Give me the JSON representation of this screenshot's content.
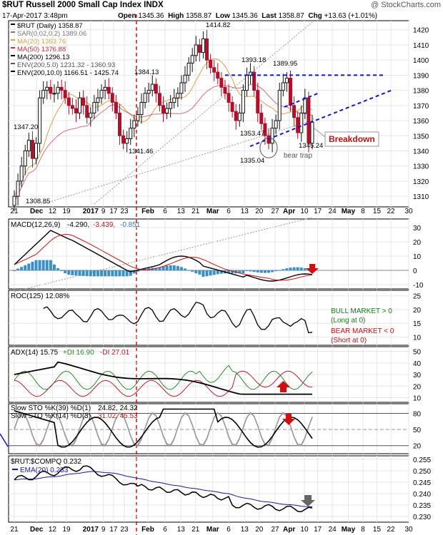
{
  "header": {
    "symbol_line": "$RUT Russell 2000 Small Cap Index INDX",
    "brand": "@ StockCharts.com",
    "date": "17-Apr-2017 3:48pm",
    "open_label": "Open",
    "open": "1345.36",
    "high_label": "High",
    "high": "1358.87",
    "low_label": "Low",
    "low": "1345.36",
    "last_label": "Last",
    "last": "1358.87",
    "chg_label": "Chg",
    "chg": "+13.63 (+1.01%)"
  },
  "colors": {
    "up": "#111111",
    "down": "#b0102a",
    "ma20": "#d4a24a",
    "ma50": "#c03040",
    "ma200": "#000000",
    "env": "#888888",
    "trend": "#1515c8",
    "macd_hist": "#3a8fc4",
    "signal_red": "#d01010",
    "bull": "#1a7a1a",
    "bear": "#c01010"
  },
  "price_panel": {
    "legend": [
      {
        "text": "$RUT (Daily) 1358.87",
        "color": "#000000"
      },
      {
        "text": "SAR(0.02,0.2) 1389.06",
        "color": "#777777"
      },
      {
        "text": "MA(20) 1363.76",
        "color": "#d4a24a"
      },
      {
        "text": "MA(50) 1376.88",
        "color": "#c03040"
      },
      {
        "text": "MA(200) 1296.13",
        "color": "#000000"
      },
      {
        "text": "ENV(200,5.0) 1231.32 - 1360.93",
        "color": "#555555"
      },
      {
        "text": "ENV(200,10.0) 1166.51 - 1425.74",
        "color": "#000000"
      }
    ],
    "annotations": [
      {
        "text": "1414.82"
      },
      {
        "text": "1393.18"
      },
      {
        "text": "1389.95"
      },
      {
        "text": "1384.13"
      },
      {
        "text": "1347.20"
      },
      {
        "text": "1341.46"
      },
      {
        "text": "1353.47"
      },
      {
        "text": "1345.24"
      },
      {
        "text": "1335.04"
      },
      {
        "text": "1308.85"
      },
      {
        "text": "bear trap"
      },
      {
        "text": "Breakdown"
      }
    ]
  },
  "x_axis": {
    "labels": [
      "21",
      "Dec",
      "12",
      "19",
      "2017",
      "9",
      "17",
      "23",
      "Feb",
      "6",
      "13",
      "21",
      "Mar",
      "6",
      "13",
      "20",
      "27",
      "Apr",
      "10",
      "17",
      "24",
      "May",
      "8",
      "15",
      "22",
      "30"
    ]
  },
  "panels": {
    "macd": {
      "label": "MACD(12,26,9)",
      "value1": "-4.290,",
      "value2": "-3.439,",
      "value3": "-0.851",
      "ticks": [
        "30",
        "20",
        "10",
        "0",
        "-10"
      ]
    },
    "roc": {
      "label": "ROC(125) 12.08%",
      "ticks": [
        "25",
        "20",
        "15",
        "10"
      ],
      "bull": "BULL MARKET > 0",
      "bull_sub": "(Long at 0)",
      "bear": "BEAR MARKET < 0",
      "bear_sub": "(Short at 0)"
    },
    "adx": {
      "label": "ADX(14) 15.75",
      "dip": "+DI 16.90",
      "dim": "-DI 27.01",
      "ticks": [
        "50",
        "40",
        "30",
        "20",
        "10"
      ]
    },
    "sto": {
      "line1_label": "Slow STO %K(39) %D(1)",
      "line1_vals": "24.82, 24.32",
      "line2_label": "Slow STO %K(14) %D(3)",
      "line2_vals": "31.02, 45.53",
      "ticks": [
        "80",
        "50",
        "20"
      ]
    },
    "ratio": {
      "label": "$RUT:$COMPQ 0.232",
      "ema": "EMA(20) 0.233",
      "ticks": [
        "0.255",
        "0.250",
        "0.245",
        "0.240",
        "0.235",
        "0.230"
      ]
    }
  },
  "chart_data": {
    "type": "candlestick",
    "title": "$RUT Russell 2000 Small Cap Index INDX",
    "ylim": [
      1300,
      1425
    ],
    "y_ticks": [
      1310,
      1320,
      1330,
      1340,
      1350,
      1360,
      1370,
      1380,
      1390,
      1400,
      1410,
      1420
    ],
    "close_approx": [
      1310,
      1320,
      1330,
      1340,
      1347,
      1335,
      1345,
      1375,
      1380,
      1382,
      1378,
      1378,
      1382,
      1380,
      1375,
      1370,
      1368,
      1365,
      1375,
      1370,
      1362,
      1365,
      1372,
      1375,
      1380,
      1382,
      1378,
      1372,
      1365,
      1350,
      1345,
      1348,
      1355,
      1360,
      1364,
      1372,
      1378,
      1380,
      1384,
      1378,
      1370,
      1365,
      1368,
      1372,
      1375,
      1378,
      1385,
      1390,
      1398,
      1403,
      1410,
      1405,
      1414,
      1400,
      1395,
      1392,
      1388,
      1382,
      1378,
      1372,
      1366,
      1360,
      1365,
      1380,
      1390,
      1392,
      1380,
      1365,
      1358,
      1350,
      1345,
      1355,
      1360,
      1380,
      1385,
      1388,
      1370,
      1362,
      1352,
      1365,
      1375,
      1345,
      1358.87
    ],
    "resistance_level": 1390,
    "ma200_approx_end": 1296.13,
    "last_close": 1358.87
  }
}
